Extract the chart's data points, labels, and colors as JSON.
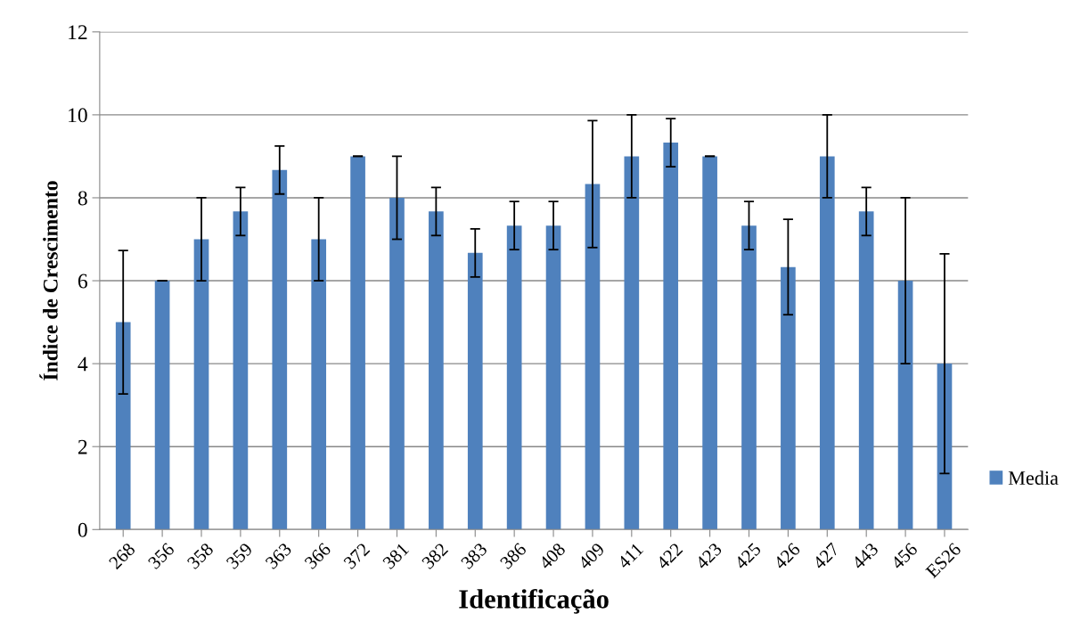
{
  "chart_data": {
    "type": "bar",
    "xlabel": "Identificação",
    "ylabel": "Índice de Crescimento",
    "categories": [
      "268",
      "356",
      "358",
      "359",
      "363",
      "366",
      "372",
      "381",
      "382",
      "383",
      "386",
      "408",
      "409",
      "411",
      "422",
      "423",
      "425",
      "426",
      "427",
      "443",
      "456",
      "ES26"
    ],
    "series": [
      {
        "name": "Media",
        "color": "#4f81bd",
        "values": [
          5,
          6,
          7,
          7.67,
          8.67,
          7,
          9,
          8,
          7.67,
          6.67,
          7.33,
          7.33,
          8.33,
          9,
          9.33,
          9,
          7.33,
          6.33,
          9,
          7.67,
          6,
          4
        ],
        "errors": [
          1.73,
          0,
          1,
          0.58,
          0.58,
          1,
          0,
          1,
          0.58,
          0.58,
          0.58,
          0.58,
          1.53,
          1,
          0.58,
          0,
          0.58,
          1.15,
          1,
          0.58,
          2,
          2.65
        ]
      }
    ],
    "ylim": [
      0,
      12
    ],
    "yticks": [
      0,
      2,
      4,
      6,
      8,
      10,
      12
    ],
    "grid": "y",
    "legend": "right"
  }
}
